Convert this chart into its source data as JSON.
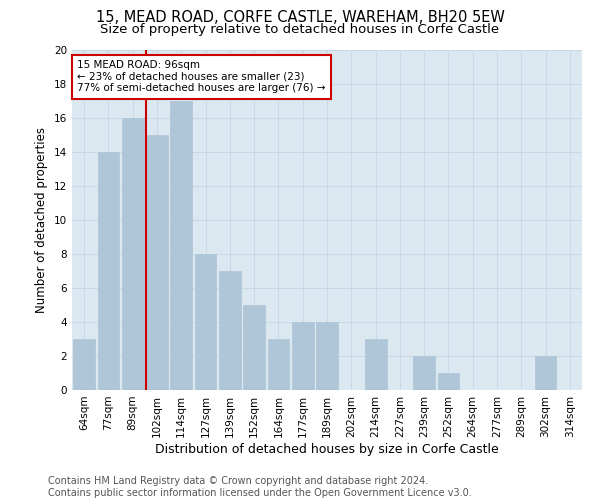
{
  "title": "15, MEAD ROAD, CORFE CASTLE, WAREHAM, BH20 5EW",
  "subtitle": "Size of property relative to detached houses in Corfe Castle",
  "xlabel": "Distribution of detached houses by size in Corfe Castle",
  "ylabel": "Number of detached properties",
  "categories": [
    "64sqm",
    "77sqm",
    "89sqm",
    "102sqm",
    "114sqm",
    "127sqm",
    "139sqm",
    "152sqm",
    "164sqm",
    "177sqm",
    "189sqm",
    "202sqm",
    "214sqm",
    "227sqm",
    "239sqm",
    "252sqm",
    "264sqm",
    "277sqm",
    "289sqm",
    "302sqm",
    "314sqm"
  ],
  "values": [
    3,
    14,
    16,
    15,
    17,
    8,
    7,
    5,
    3,
    4,
    4,
    0,
    3,
    0,
    2,
    1,
    0,
    0,
    0,
    2,
    0
  ],
  "bar_color": "#aec6d8",
  "bar_edgecolor": "#aec6d8",
  "grid_color": "#c8d8e8",
  "background_color": "#dce8f0",
  "annotation_text": "15 MEAD ROAD: 96sqm\n← 23% of detached houses are smaller (23)\n77% of semi-detached houses are larger (76) →",
  "annotation_box_color": "#ffffff",
  "annotation_border_color": "#cc0000",
  "ylim": [
    0,
    20
  ],
  "yticks": [
    0,
    2,
    4,
    6,
    8,
    10,
    12,
    14,
    16,
    18,
    20
  ],
  "footer_line1": "Contains HM Land Registry data © Crown copyright and database right 2024.",
  "footer_line2": "Contains public sector information licensed under the Open Government Licence v3.0.",
  "title_fontsize": 10.5,
  "subtitle_fontsize": 9.5,
  "xlabel_fontsize": 9,
  "ylabel_fontsize": 8.5,
  "tick_fontsize": 7.5,
  "annotation_fontsize": 7.5,
  "footer_fontsize": 7
}
